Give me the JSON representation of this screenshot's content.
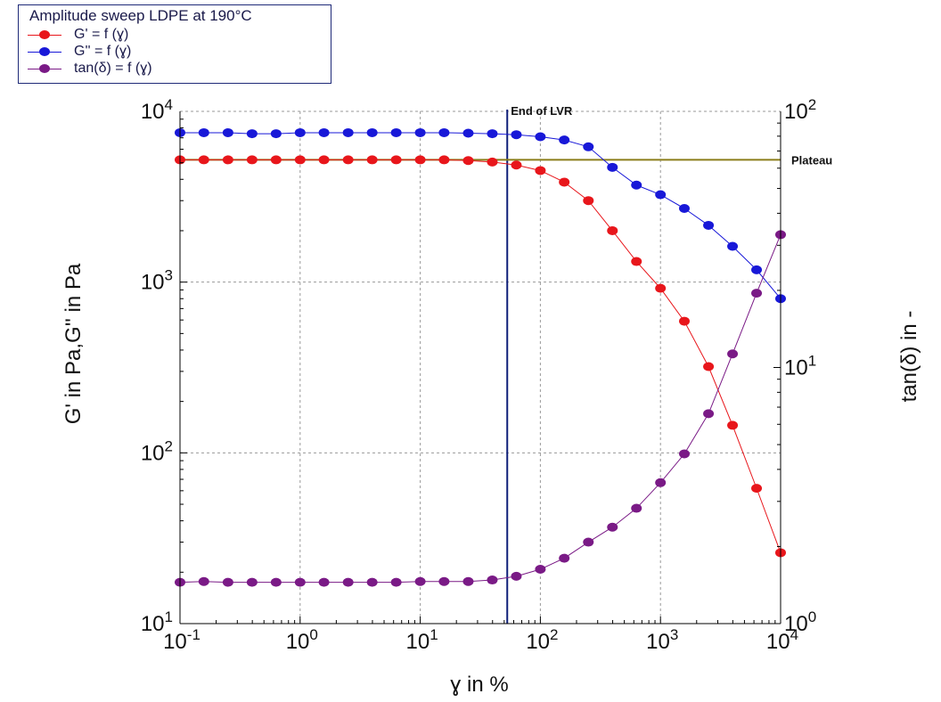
{
  "legend": {
    "title": "Amplitude sweep LDPE at 190°C",
    "items": [
      {
        "label": "G' = f (ɣ)",
        "color": "#e8161b"
      },
      {
        "label": "G'' = f (ɣ)",
        "color": "#1818d8"
      },
      {
        "label": "tan(δ) = f (ɣ)",
        "color": "#7a1a86"
      }
    ]
  },
  "chart_data": {
    "type": "line",
    "xlabel": "ɣ in %",
    "ylabel": "G' in Pa,G'' in Pa",
    "y2label": "tan(δ) in -",
    "x_scale": "log",
    "y_scale": "log",
    "y2_scale": "log",
    "xlim": [
      0.1,
      10000
    ],
    "ylim": [
      10,
      10000
    ],
    "y2lim": [
      1,
      100
    ],
    "grid": true,
    "legend_position": "top-left",
    "x_ticks": [
      {
        "base": "10",
        "exp": "-1"
      },
      {
        "base": "10",
        "exp": "0"
      },
      {
        "base": "10",
        "exp": "1"
      },
      {
        "base": "10",
        "exp": "2"
      },
      {
        "base": "10",
        "exp": "3"
      },
      {
        "base": "10",
        "exp": "4"
      }
    ],
    "y_ticks": [
      {
        "base": "10",
        "exp": "1"
      },
      {
        "base": "10",
        "exp": "2"
      },
      {
        "base": "10",
        "exp": "3"
      },
      {
        "base": "10",
        "exp": "4"
      }
    ],
    "y2_ticks": [
      {
        "base": "10",
        "exp": "0"
      },
      {
        "base": "10",
        "exp": "1"
      },
      {
        "base": "10",
        "exp": "2"
      }
    ],
    "x": [
      0.1,
      0.158,
      0.251,
      0.398,
      0.631,
      1,
      1.58,
      2.51,
      3.98,
      6.31,
      10,
      15.8,
      25.1,
      39.8,
      63.1,
      100,
      158,
      251,
      398,
      631,
      1000,
      1580,
      2510,
      3980,
      6310,
      10000
    ],
    "series": [
      {
        "name": "G' = f (ɣ)",
        "axis": "left",
        "color": "#e8161b",
        "values": [
          5200,
          5200,
          5200,
          5200,
          5200,
          5200,
          5200,
          5200,
          5200,
          5200,
          5200,
          5200,
          5150,
          5050,
          4850,
          4500,
          3850,
          3000,
          2000,
          1320,
          920,
          590,
          320,
          145,
          62,
          26
        ]
      },
      {
        "name": "G'' = f (ɣ)",
        "axis": "left",
        "color": "#1818d8",
        "values": [
          7500,
          7500,
          7500,
          7400,
          7400,
          7500,
          7500,
          7500,
          7500,
          7500,
          7500,
          7500,
          7450,
          7400,
          7300,
          7100,
          6800,
          6200,
          4700,
          3700,
          3250,
          2700,
          2150,
          1620,
          1180,
          800
        ]
      },
      {
        "name": "tan(δ) = f (ɣ)",
        "axis": "right",
        "color": "#7a1a86",
        "values": [
          1.45,
          1.46,
          1.45,
          1.45,
          1.45,
          1.45,
          1.45,
          1.45,
          1.45,
          1.45,
          1.46,
          1.46,
          1.46,
          1.48,
          1.53,
          1.63,
          1.8,
          2.08,
          2.38,
          2.82,
          3.55,
          4.6,
          6.6,
          11.3,
          19.5,
          33
        ]
      }
    ],
    "annotations": [
      {
        "type": "vline",
        "x": 53,
        "label": "End of LVR",
        "color": "#10207a"
      },
      {
        "type": "hline",
        "y": 5200,
        "label": "Plateau",
        "color": "#8b7d1a"
      }
    ]
  }
}
